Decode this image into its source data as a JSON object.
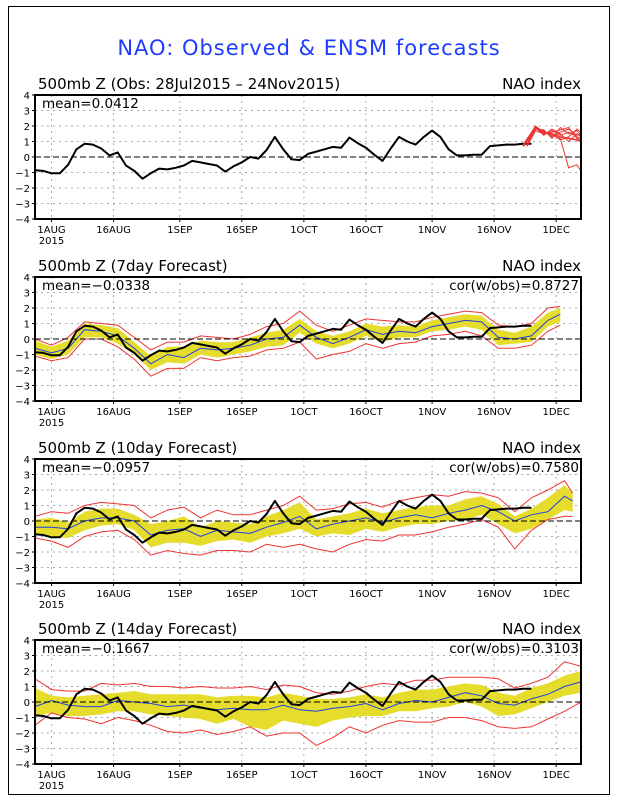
{
  "title": "NAO: Observed & ENSM forecasts",
  "colors": {
    "title": "#1e3cff",
    "observed": "#000000",
    "ensemble_member": "#ee3333",
    "spread_bounds": "#ee3333",
    "spread_fill": "#e5dc2c",
    "ensemble_mean": "#2040e0",
    "grid": "#aaaaaa"
  },
  "chart_data": [
    {
      "type": "line",
      "title": "500mb Z (Obs: 28Jul2015 – 24Nov2015)",
      "right_label": "NAO index",
      "mean_label": "mean=0.0412",
      "cor_label": "",
      "xlabel": "",
      "ylabel": "NAO index",
      "ylim": [
        -4,
        4
      ],
      "yticks": [
        "4",
        "3",
        "2",
        "1",
        "0",
        "−1",
        "−2",
        "−3",
        "−4"
      ],
      "xticks": [
        {
          "day": 4,
          "label": "1AUG",
          "sub": "2015"
        },
        {
          "day": 19,
          "label": "16AUG"
        },
        {
          "day": 35,
          "label": "1SEP"
        },
        {
          "day": 50,
          "label": "16SEP"
        },
        {
          "day": 65,
          "label": "1OCT"
        },
        {
          "day": 80,
          "label": "16OCT"
        },
        {
          "day": 96,
          "label": "1NOV"
        },
        {
          "day": 111,
          "label": "16NOV"
        },
        {
          "day": 126,
          "label": "1DEC"
        }
      ],
      "x_range_days": [
        0,
        132
      ],
      "x_origin": "28Jul2015",
      "grid": true,
      "zero_line": "dashed",
      "observed": {
        "days": [
          0,
          2,
          4,
          6,
          8,
          10,
          12,
          14,
          16,
          18,
          20,
          22,
          24,
          26,
          28,
          30,
          32,
          34,
          36,
          38,
          40,
          42,
          44,
          46,
          48,
          50,
          52,
          54,
          56,
          58,
          60,
          62,
          64,
          66,
          68,
          70,
          72,
          74,
          76,
          78,
          80,
          82,
          84,
          86,
          88,
          90,
          92,
          94,
          96,
          98,
          100,
          102,
          104,
          106,
          108,
          110,
          112,
          114,
          116,
          118,
          120
        ],
        "values": [
          -0.85,
          -0.9,
          -1.05,
          -1.05,
          -0.5,
          0.5,
          0.85,
          0.8,
          0.55,
          0.1,
          0.3,
          -0.55,
          -0.9,
          -1.4,
          -1.05,
          -0.75,
          -0.8,
          -0.7,
          -0.55,
          -0.25,
          -0.35,
          -0.45,
          -0.55,
          -0.95,
          -0.6,
          -0.35,
          0.0,
          -0.1,
          0.45,
          1.3,
          0.5,
          -0.15,
          -0.2,
          0.2,
          0.35,
          0.5,
          0.65,
          0.6,
          1.25,
          0.9,
          0.6,
          0.15,
          -0.25,
          0.55,
          1.3,
          1.0,
          0.8,
          1.3,
          1.7,
          1.3,
          0.5,
          0.1,
          0.1,
          0.15,
          0.15,
          0.7,
          0.75,
          0.8,
          0.8,
          0.85,
          0.85
        ]
      },
      "ensemble_members": [
        {
          "days": [
            119,
            121,
            123,
            125,
            127,
            129,
            131,
            132
          ],
          "values": [
            0.75,
            1.95,
            1.6,
            1.5,
            1.3,
            1.2,
            1.1,
            1.0
          ]
        },
        {
          "days": [
            119,
            121,
            123,
            125,
            127,
            129,
            131,
            132
          ],
          "values": [
            0.8,
            1.85,
            1.7,
            1.3,
            1.6,
            1.8,
            1.4,
            1.5
          ]
        },
        {
          "days": [
            119,
            121,
            123,
            125,
            127,
            129,
            131,
            132
          ],
          "values": [
            0.7,
            1.9,
            1.5,
            1.7,
            1.4,
            1.6,
            1.3,
            1.2
          ]
        },
        {
          "days": [
            119,
            121,
            123,
            125,
            127,
            129,
            131,
            132
          ],
          "values": [
            0.75,
            1.8,
            1.75,
            1.2,
            1.9,
            1.5,
            1.7,
            1.4
          ]
        },
        {
          "days": [
            119,
            121,
            123,
            125,
            127,
            129,
            131,
            132
          ],
          "values": [
            0.8,
            2.0,
            1.6,
            1.5,
            1.1,
            1.3,
            1.8,
            1.6
          ]
        },
        {
          "days": [
            119,
            121,
            123,
            125,
            127,
            129,
            131,
            132
          ],
          "values": [
            0.7,
            1.7,
            1.5,
            1.6,
            1.75,
            1.9,
            1.2,
            1.1
          ]
        },
        {
          "days": [
            119,
            121,
            123,
            125,
            127,
            129,
            131,
            132
          ],
          "values": [
            0.75,
            1.9,
            1.4,
            1.8,
            1.5,
            1.0,
            1.5,
            1.3
          ]
        },
        {
          "days": [
            119,
            121,
            123,
            125,
            127,
            129,
            131,
            132
          ],
          "values": [
            0.8,
            1.85,
            1.65,
            1.4,
            1.2,
            -0.7,
            -0.5,
            -0.9
          ]
        }
      ]
    },
    {
      "type": "line",
      "title": "500mb Z (7day Forecast)",
      "right_label": "NAO index",
      "mean_label": "mean=−0.0338",
      "cor_label": "cor(w/obs)=0.8727",
      "ylim": [
        -4,
        4
      ],
      "yticks": [
        "4",
        "3",
        "2",
        "1",
        "0",
        "−1",
        "−2",
        "−3",
        "−4"
      ],
      "xticks": [
        {
          "day": 4,
          "label": "1AUG",
          "sub": "2015"
        },
        {
          "day": 19,
          "label": "16AUG"
        },
        {
          "day": 35,
          "label": "1SEP"
        },
        {
          "day": 50,
          "label": "16SEP"
        },
        {
          "day": 65,
          "label": "1OCT"
        },
        {
          "day": 80,
          "label": "16OCT"
        },
        {
          "day": 96,
          "label": "1NOV"
        },
        {
          "day": 111,
          "label": "16NOV"
        },
        {
          "day": 126,
          "label": "1DEC"
        }
      ],
      "x_range_days": [
        0,
        132
      ],
      "grid": true,
      "zero_line": "dashed",
      "forecast": {
        "days": [
          0,
          4,
          8,
          12,
          16,
          20,
          24,
          28,
          32,
          36,
          40,
          44,
          48,
          52,
          56,
          60,
          64,
          68,
          72,
          76,
          80,
          84,
          88,
          92,
          96,
          100,
          104,
          108,
          112,
          116,
          120,
          124,
          127
        ],
        "mean": [
          -0.6,
          -0.9,
          -0.6,
          0.6,
          0.5,
          0.2,
          -0.6,
          -1.6,
          -1.0,
          -1.2,
          -0.6,
          -0.7,
          -0.6,
          -0.4,
          0.0,
          0.1,
          0.9,
          0.1,
          -0.3,
          0.1,
          0.6,
          0.3,
          0.5,
          0.4,
          0.8,
          1.0,
          1.2,
          1.1,
          0.1,
          0.0,
          0.2,
          1.2,
          1.6
        ],
        "fill_lo": [
          -1.0,
          -1.3,
          -1.0,
          0.1,
          0.1,
          -0.3,
          -1.0,
          -2.0,
          -1.5,
          -1.6,
          -1.0,
          -1.2,
          -1.0,
          -0.8,
          -0.5,
          -0.4,
          0.4,
          -0.3,
          -0.6,
          -0.3,
          0.2,
          -0.2,
          0.1,
          0.1,
          0.5,
          0.6,
          0.8,
          0.6,
          -0.4,
          -0.3,
          -0.2,
          0.8,
          1.1
        ],
        "fill_hi": [
          -0.1,
          -0.5,
          -0.1,
          1.0,
          0.9,
          0.7,
          -0.2,
          -1.1,
          -0.5,
          -0.5,
          -0.1,
          -0.2,
          -0.2,
          0.1,
          0.4,
          0.6,
          1.3,
          0.5,
          0.2,
          0.5,
          1.0,
          0.8,
          0.9,
          0.8,
          1.2,
          1.4,
          1.6,
          1.5,
          0.6,
          0.4,
          0.8,
          1.7,
          2.0
        ],
        "min": [
          -1.1,
          -1.4,
          -1.2,
          0.0,
          0.0,
          -0.5,
          -1.3,
          -2.4,
          -1.9,
          -1.9,
          -1.2,
          -1.4,
          -1.2,
          -1.1,
          -0.7,
          -0.6,
          -0.2,
          -1.3,
          -1.0,
          -0.8,
          -0.3,
          -0.6,
          -0.3,
          -0.2,
          0.2,
          0.3,
          0.5,
          0.2,
          -0.6,
          -0.6,
          -0.4,
          0.5,
          0.9
        ],
        "max": [
          0.0,
          -0.4,
          0.1,
          1.1,
          1.0,
          0.9,
          0.1,
          -0.7,
          -0.2,
          -0.2,
          0.2,
          0.1,
          0.0,
          0.3,
          0.8,
          1.0,
          1.8,
          0.9,
          0.5,
          0.9,
          1.3,
          1.2,
          1.1,
          1.1,
          1.4,
          1.6,
          1.8,
          1.7,
          0.9,
          0.8,
          1.0,
          2.0,
          2.1
        ]
      }
    },
    {
      "type": "line",
      "title": "500mb Z (10day Forecast)",
      "right_label": "NAO index",
      "mean_label": "mean=−0.0957",
      "cor_label": "cor(w/obs)=0.7580",
      "ylim": [
        -4,
        4
      ],
      "yticks": [
        "4",
        "3",
        "2",
        "1",
        "0",
        "−1",
        "−2",
        "−3",
        "−4"
      ],
      "xticks": [
        {
          "day": 4,
          "label": "1AUG",
          "sub": "2015"
        },
        {
          "day": 19,
          "label": "16AUG"
        },
        {
          "day": 35,
          "label": "1SEP"
        },
        {
          "day": 50,
          "label": "16SEP"
        },
        {
          "day": 65,
          "label": "1OCT"
        },
        {
          "day": 80,
          "label": "16OCT"
        },
        {
          "day": 96,
          "label": "1NOV"
        },
        {
          "day": 111,
          "label": "16NOV"
        },
        {
          "day": 126,
          "label": "1DEC"
        }
      ],
      "x_range_days": [
        0,
        132
      ],
      "grid": true,
      "zero_line": "dashed",
      "forecast": {
        "days": [
          0,
          4,
          8,
          12,
          16,
          20,
          24,
          28,
          32,
          36,
          40,
          44,
          48,
          52,
          56,
          60,
          64,
          68,
          72,
          76,
          80,
          84,
          88,
          92,
          96,
          100,
          104,
          108,
          112,
          116,
          120,
          124,
          128,
          130
        ],
        "mean": [
          -0.4,
          -0.4,
          -0.5,
          0.0,
          0.2,
          0.2,
          0.0,
          -0.9,
          -0.6,
          -0.5,
          -1.0,
          -0.6,
          -0.7,
          -0.8,
          -0.4,
          -0.1,
          0.3,
          -0.5,
          -0.2,
          0.0,
          0.2,
          -0.1,
          0.2,
          0.4,
          0.2,
          0.5,
          0.7,
          1.0,
          0.6,
          0.0,
          0.4,
          0.6,
          1.6,
          1.3
        ],
        "fill_lo": [
          -0.9,
          -1.0,
          -1.1,
          -0.6,
          -0.3,
          -0.2,
          -0.6,
          -1.7,
          -1.4,
          -1.4,
          -1.6,
          -1.3,
          -1.2,
          -1.4,
          -1.0,
          -0.8,
          -0.5,
          -1.0,
          -0.8,
          -0.9,
          -0.5,
          -0.7,
          -0.4,
          -0.2,
          -0.2,
          0.0,
          0.1,
          0.4,
          -0.2,
          -0.8,
          -0.5,
          0.1,
          0.7,
          0.6
        ],
        "fill_hi": [
          0.1,
          0.2,
          -0.1,
          0.6,
          0.8,
          0.8,
          0.4,
          -0.2,
          0.0,
          0.3,
          -0.4,
          0.0,
          -0.1,
          -0.2,
          0.3,
          0.7,
          1.2,
          0.1,
          0.3,
          0.5,
          0.8,
          0.5,
          0.7,
          0.9,
          1.0,
          1.0,
          1.4,
          1.6,
          1.1,
          0.3,
          0.8,
          1.5,
          2.3,
          1.8
        ],
        "min": [
          -1.1,
          -1.3,
          -1.7,
          -1.0,
          -0.7,
          -0.6,
          -1.2,
          -2.2,
          -1.9,
          -2.1,
          -2.2,
          -1.9,
          -1.9,
          -2.0,
          -1.5,
          -1.7,
          -1.5,
          -1.8,
          -2.0,
          -1.5,
          -1.2,
          -1.3,
          -0.9,
          -0.9,
          -0.7,
          -0.4,
          -0.2,
          0.1,
          -0.4,
          -1.8,
          -0.6,
          0.1,
          0.3,
          0.3
        ],
        "max": [
          0.3,
          0.6,
          0.5,
          1.0,
          1.2,
          1.1,
          1.0,
          0.2,
          0.7,
          0.9,
          0.2,
          0.7,
          0.4,
          0.4,
          0.7,
          1.0,
          1.6,
          0.7,
          0.8,
          1.1,
          1.2,
          0.9,
          1.3,
          1.5,
          1.7,
          1.6,
          1.9,
          1.8,
          1.5,
          0.6,
          1.5,
          2.0,
          2.6,
          1.8
        ]
      }
    },
    {
      "type": "line",
      "title": "500mb Z (14day Forecast)",
      "right_label": "NAO index",
      "mean_label": "mean=−0.1667",
      "cor_label": "cor(w/obs)=0.3103",
      "ylim": [
        -4,
        4
      ],
      "yticks": [
        "4",
        "3",
        "2",
        "1",
        "0",
        "−1",
        "−2",
        "−3",
        "−4"
      ],
      "xticks": [
        {
          "day": 4,
          "label": "1AUG",
          "sub": "2015"
        },
        {
          "day": 19,
          "label": "16AUG"
        },
        {
          "day": 35,
          "label": "1SEP"
        },
        {
          "day": 50,
          "label": "16SEP"
        },
        {
          "day": 65,
          "label": "1OCT"
        },
        {
          "day": 80,
          "label": "16OCT"
        },
        {
          "day": 96,
          "label": "1NOV"
        },
        {
          "day": 111,
          "label": "16NOV"
        },
        {
          "day": 126,
          "label": "1DEC"
        }
      ],
      "x_range_days": [
        0,
        132
      ],
      "grid": true,
      "zero_line": "dashed",
      "forecast": {
        "days": [
          0,
          4,
          8,
          12,
          16,
          20,
          24,
          28,
          32,
          36,
          40,
          44,
          48,
          52,
          56,
          60,
          64,
          68,
          72,
          76,
          80,
          84,
          88,
          92,
          96,
          100,
          104,
          108,
          112,
          116,
          120,
          124,
          128,
          132
        ],
        "mean": [
          -0.3,
          0.1,
          -0.2,
          -0.3,
          -0.3,
          0.1,
          0.0,
          -0.1,
          -0.3,
          -0.2,
          -0.4,
          -0.5,
          -0.4,
          -0.5,
          -0.5,
          -0.2,
          -0.5,
          -0.6,
          -0.4,
          -0.3,
          -0.1,
          -0.5,
          -0.1,
          0.1,
          0.0,
          0.3,
          0.6,
          0.4,
          -0.1,
          -0.2,
          0.2,
          0.5,
          1.0,
          1.3
        ],
        "fill_lo": [
          -0.9,
          -0.7,
          -0.9,
          -0.9,
          -0.8,
          -0.6,
          -0.6,
          -0.8,
          -0.9,
          -1.0,
          -1.1,
          -1.4,
          -1.1,
          -1.6,
          -1.8,
          -1.2,
          -1.4,
          -1.6,
          -1.2,
          -1.0,
          -0.9,
          -0.9,
          -0.6,
          -0.6,
          -0.4,
          -0.3,
          0.0,
          -0.3,
          -0.9,
          -0.8,
          -0.4,
          0.0,
          0.4,
          0.6
        ],
        "fill_hi": [
          0.9,
          0.4,
          0.3,
          0.4,
          0.5,
          0.6,
          0.7,
          0.5,
          0.5,
          0.5,
          0.5,
          0.3,
          0.4,
          0.4,
          0.3,
          0.6,
          0.4,
          0.2,
          0.2,
          0.3,
          0.5,
          0.3,
          0.6,
          0.8,
          0.8,
          1.0,
          1.2,
          1.1,
          0.6,
          0.4,
          0.9,
          1.2,
          1.7,
          2.0
        ],
        "min": [
          -1.5,
          -0.7,
          -1.0,
          -1.1,
          -1.4,
          -1.0,
          -1.2,
          -1.5,
          -1.9,
          -2.0,
          -1.8,
          -2.1,
          -1.9,
          -1.6,
          -2.2,
          -2.0,
          -2.0,
          -2.8,
          -2.3,
          -1.6,
          -2.0,
          -1.5,
          -1.2,
          -1.3,
          -1.3,
          -1.0,
          -1.0,
          -1.2,
          -1.6,
          -1.7,
          -1.6,
          -1.1,
          -0.6,
          0.0
        ],
        "max": [
          1.5,
          0.8,
          0.7,
          0.7,
          1.2,
          1.1,
          1.2,
          1.0,
          1.0,
          0.9,
          1.0,
          0.9,
          0.9,
          1.0,
          0.8,
          1.1,
          1.0,
          0.6,
          0.5,
          0.7,
          1.0,
          1.2,
          1.1,
          1.4,
          1.4,
          1.6,
          1.6,
          1.6,
          1.5,
          0.9,
          1.2,
          1.6,
          2.6,
          2.3
        ]
      }
    }
  ]
}
